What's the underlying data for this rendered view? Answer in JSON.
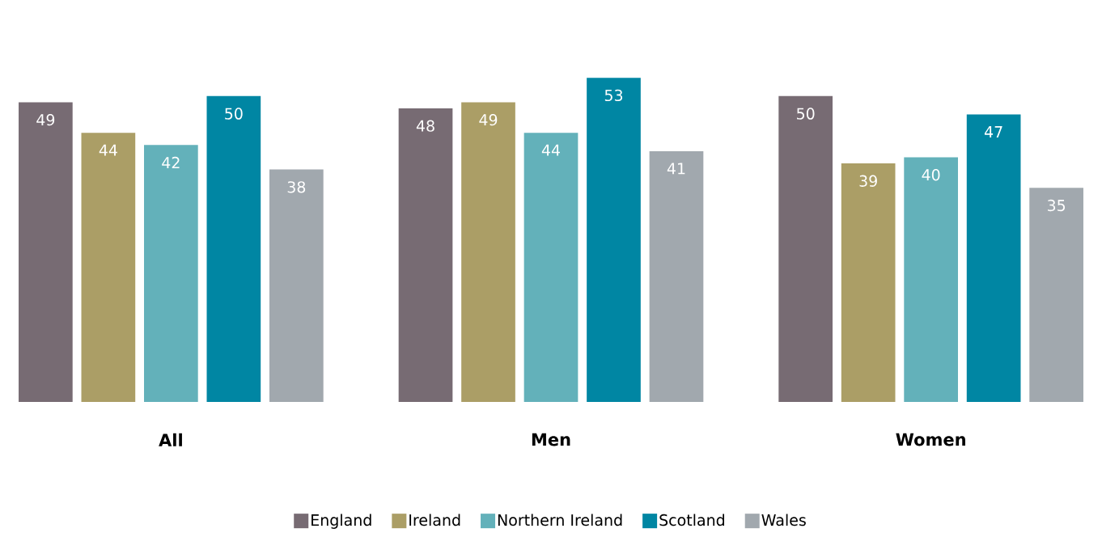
{
  "chart_data": {
    "type": "bar",
    "categories": [
      "All",
      "Men",
      "Women"
    ],
    "series": [
      {
        "name": "England",
        "color": "#776b73",
        "values": [
          49,
          48,
          50
        ]
      },
      {
        "name": "Ireland",
        "color": "#ab9e66",
        "values": [
          44,
          49,
          39
        ]
      },
      {
        "name": "Northern Ireland",
        "color": "#63b1ba",
        "values": [
          42,
          44,
          40
        ]
      },
      {
        "name": "Scotland",
        "color": "#0086a3",
        "values": [
          50,
          53,
          47
        ]
      },
      {
        "name": "Wales",
        "color": "#a1a8ae",
        "values": [
          38,
          41,
          35
        ]
      }
    ],
    "data_labels": true,
    "legend": "bottom"
  }
}
